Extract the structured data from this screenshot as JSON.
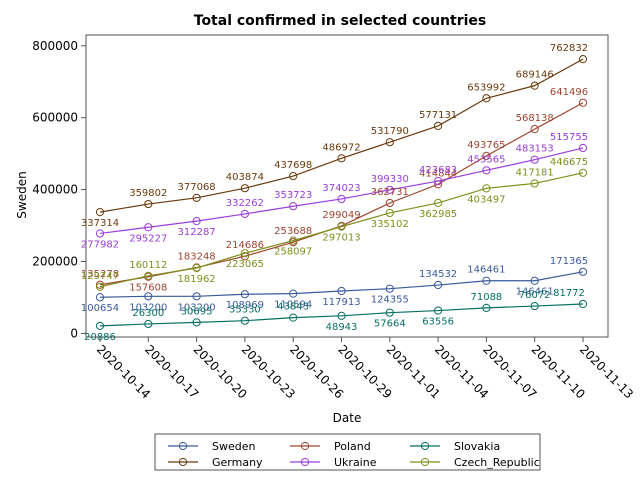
{
  "chart_data": {
    "type": "line",
    "title": "Total confirmed in selected countries",
    "xlabel": "Date",
    "ylabel": "Sweden",
    "categories": [
      "2020-10-14",
      "2020-10-17",
      "2020-10-20",
      "2020-10-23",
      "2020-10-26",
      "2020-10-29",
      "2020-11-01",
      "2020-11-04",
      "2020-11-07",
      "2020-11-10",
      "2020-11-13"
    ],
    "ylim": [
      -10000,
      830000
    ],
    "yticks": [
      0,
      200000,
      400000,
      600000,
      800000
    ],
    "ytick_labels": [
      "0",
      "200000",
      "400000",
      "600000",
      "800000"
    ],
    "legend_position": "bottom",
    "series": [
      {
        "name": "Sweden",
        "color": "#3a5a9b",
        "values": [
          100654,
          103200,
          103200,
          108969,
          110594,
          117913,
          124355,
          134532,
          146461,
          146461,
          171365
        ]
      },
      {
        "name": "Poland",
        "color": "#a0442f",
        "values": [
          135278,
          157608,
          183248,
          214686,
          253688,
          299049,
          362731,
          414844,
          493765,
          568138,
          641496
        ]
      },
      {
        "name": "Slovakia",
        "color": "#087066",
        "values": [
          20886,
          26300,
          30695,
          35330,
          43843,
          48943,
          57664,
          63556,
          71088,
          76072,
          81772
        ]
      },
      {
        "name": "Germany",
        "color": "#6a3a0c",
        "values": [
          337314,
          359802,
          377068,
          403874,
          437698,
          486972,
          531790,
          577131,
          653992,
          689146,
          762832
        ]
      },
      {
        "name": "Ukraine",
        "color": "#9a3ddb",
        "values": [
          277982,
          295227,
          312287,
          332262,
          353723,
          374023,
          399330,
          423683,
          453565,
          483153,
          515755
        ]
      },
      {
        "name": "Czech_Republic",
        "color": "#7f8f1a",
        "values": [
          129747,
          160112,
          181962,
          223065,
          258097,
          297013,
          335102,
          362985,
          403497,
          417181,
          446675
        ]
      }
    ]
  }
}
